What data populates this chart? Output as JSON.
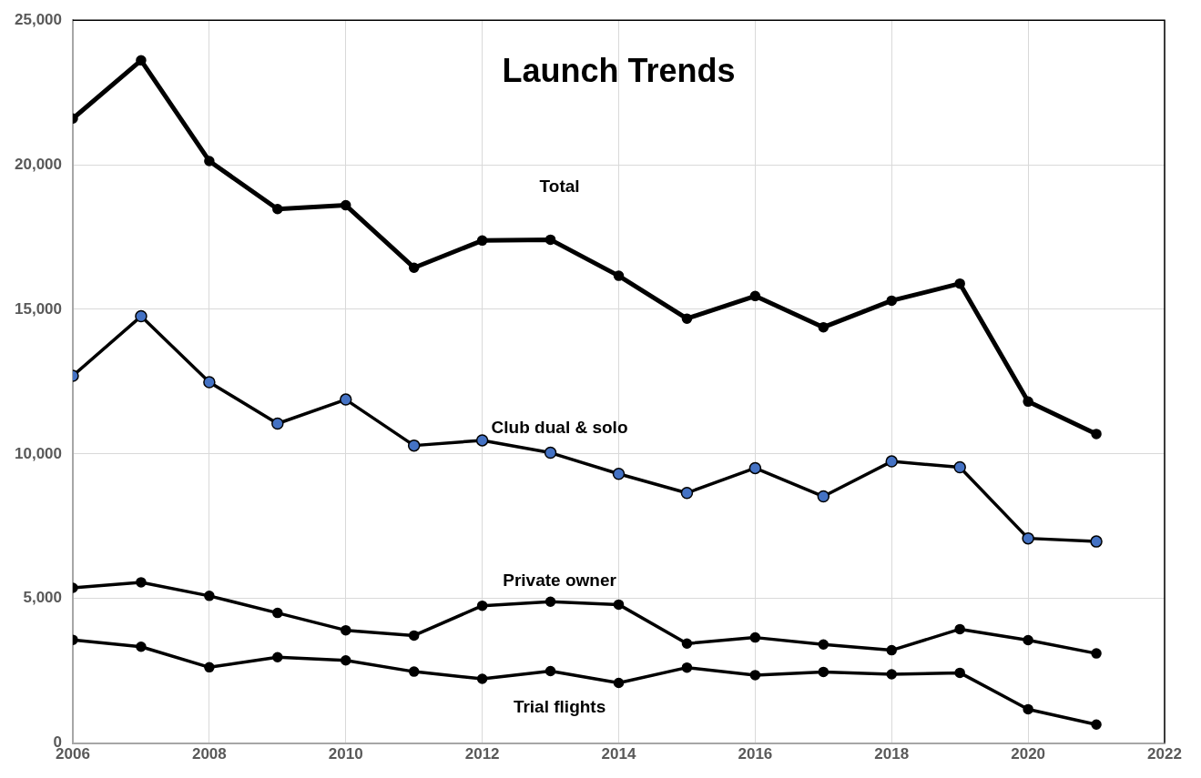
{
  "chart_data": {
    "type": "line",
    "title": "Launch Trends",
    "x": [
      2006,
      2007,
      2008,
      2009,
      2010,
      2011,
      2012,
      2013,
      2014,
      2015,
      2016,
      2017,
      2018,
      2019,
      2020,
      2021
    ],
    "series": [
      {
        "name": "Total",
        "color": "#000000",
        "values": [
          21600,
          23610,
          20130,
          18470,
          18600,
          16440,
          17380,
          17410,
          16160,
          14680,
          15460,
          14380,
          15300,
          15890,
          11810,
          10690
        ]
      },
      {
        "name": "Club dual & solo",
        "color": "#000000",
        "colors": [
          "#4472c4",
          "#4472c4",
          "#4472c4",
          "#4472c4",
          "#4472c4",
          "#4472c4",
          "#4472c4",
          "#4472c4",
          "#4472c4",
          "#4472c4",
          "#4472c4",
          "#4472c4",
          "#4472c4",
          "#4472c4",
          "#4472c4",
          "#4472c4"
        ],
        "values": [
          12700,
          14760,
          12480,
          11050,
          11880,
          10290,
          10470,
          10040,
          9310,
          8650,
          9510,
          8530,
          9740,
          9540,
          7080,
          6970
        ]
      },
      {
        "name": "Private owner",
        "color": "#000000",
        "values": [
          5370,
          5560,
          5090,
          4500,
          3900,
          3720,
          4750,
          4890,
          4790,
          3440,
          3650,
          3410,
          3210,
          3940,
          3560,
          3100
        ]
      },
      {
        "name": "Trial flights",
        "color": "#000000",
        "values": [
          3570,
          3330,
          2620,
          2970,
          2860,
          2470,
          2220,
          2490,
          2080,
          2610,
          2350,
          2460,
          2380,
          2430,
          1170,
          640
        ]
      }
    ],
    "xlim": [
      2006,
      2022
    ],
    "xticks": [
      2006,
      2008,
      2010,
      2012,
      2014,
      2016,
      2018,
      2020,
      2022
    ],
    "ylim": [
      0,
      25000
    ],
    "yticks": [
      {
        "value": 0,
        "label": "0"
      },
      {
        "value": 5000,
        "label": "5,000"
      },
      {
        "value": 10000,
        "label": "10,000"
      },
      {
        "value": 15000,
        "label": "15,000"
      },
      {
        "value": 20000,
        "label": "20,000"
      },
      {
        "value": 25000,
        "label": "25,000"
      }
    ],
    "grid": true,
    "legend": false,
    "marker": "circle",
    "line_style": "solid"
  }
}
